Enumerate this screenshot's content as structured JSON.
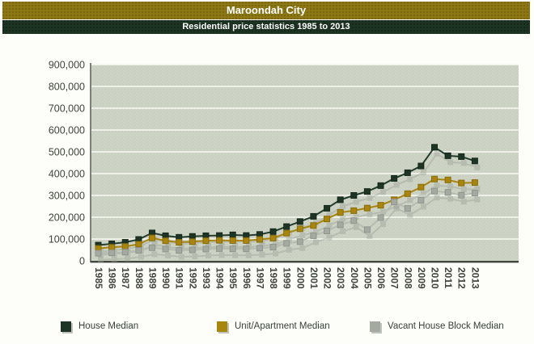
{
  "header": {
    "title": "Maroondah City",
    "subtitle": "Residential price statistics 1985 to 2013"
  },
  "chart_data": {
    "type": "line",
    "title": "Maroondah City",
    "subtitle": "Residential price statistics 1985 to 2013",
    "categories": [
      "1985",
      "1986",
      "1987",
      "1988",
      "1989",
      "1990",
      "1991",
      "1992",
      "1993",
      "1994",
      "1995",
      "1996",
      "1997",
      "1998",
      "1999",
      "2000",
      "2001",
      "2002",
      "2003",
      "2004",
      "2005",
      "2006",
      "2007",
      "2008",
      "2009",
      "2010",
      "2011",
      "2012",
      "2013"
    ],
    "series": [
      {
        "name": "House Median",
        "color": "#1e3526",
        "marker": "square",
        "values": [
          72000,
          78000,
          85000,
          98000,
          128000,
          115000,
          108000,
          112000,
          115000,
          116000,
          119000,
          116000,
          121000,
          134000,
          157000,
          180000,
          204000,
          241000,
          280000,
          300000,
          318000,
          345000,
          378000,
          404000,
          435000,
          521000,
          482000,
          478000,
          458000
        ]
      },
      {
        "name": "Unit/Apartment Median",
        "color": "#a8850e",
        "marker": "square",
        "values": [
          57000,
          62000,
          66000,
          76000,
          105000,
          92000,
          85000,
          88000,
          92000,
          94000,
          93000,
          93000,
          98000,
          104000,
          127000,
          147000,
          162000,
          192000,
          222000,
          230000,
          242000,
          255000,
          280000,
          308000,
          338000,
          375000,
          371000,
          357000,
          359000
        ]
      },
      {
        "name": "Vacant House Block Median",
        "color": "#a4aaa2",
        "marker": "square",
        "values": [
          35000,
          37000,
          40000,
          48000,
          60000,
          54000,
          48000,
          50000,
          54000,
          56000,
          55000,
          55000,
          58000,
          63000,
          80000,
          88000,
          115000,
          137000,
          165000,
          184000,
          143000,
          198000,
          270000,
          240000,
          278000,
          320000,
          314000,
          301000,
          311000
        ]
      }
    ],
    "ylim": [
      0,
      900000
    ],
    "ytick_interval": 100000,
    "ytick_labels": [
      "0",
      "100,000",
      "200,000",
      "300,000",
      "400,000",
      "500,000",
      "600,000",
      "700,000",
      "800,000",
      "900,000"
    ],
    "grid": "horizontal-white",
    "plot_background": "#cad0c2",
    "legend_position": "bottom",
    "x_label_rotation": 90
  }
}
